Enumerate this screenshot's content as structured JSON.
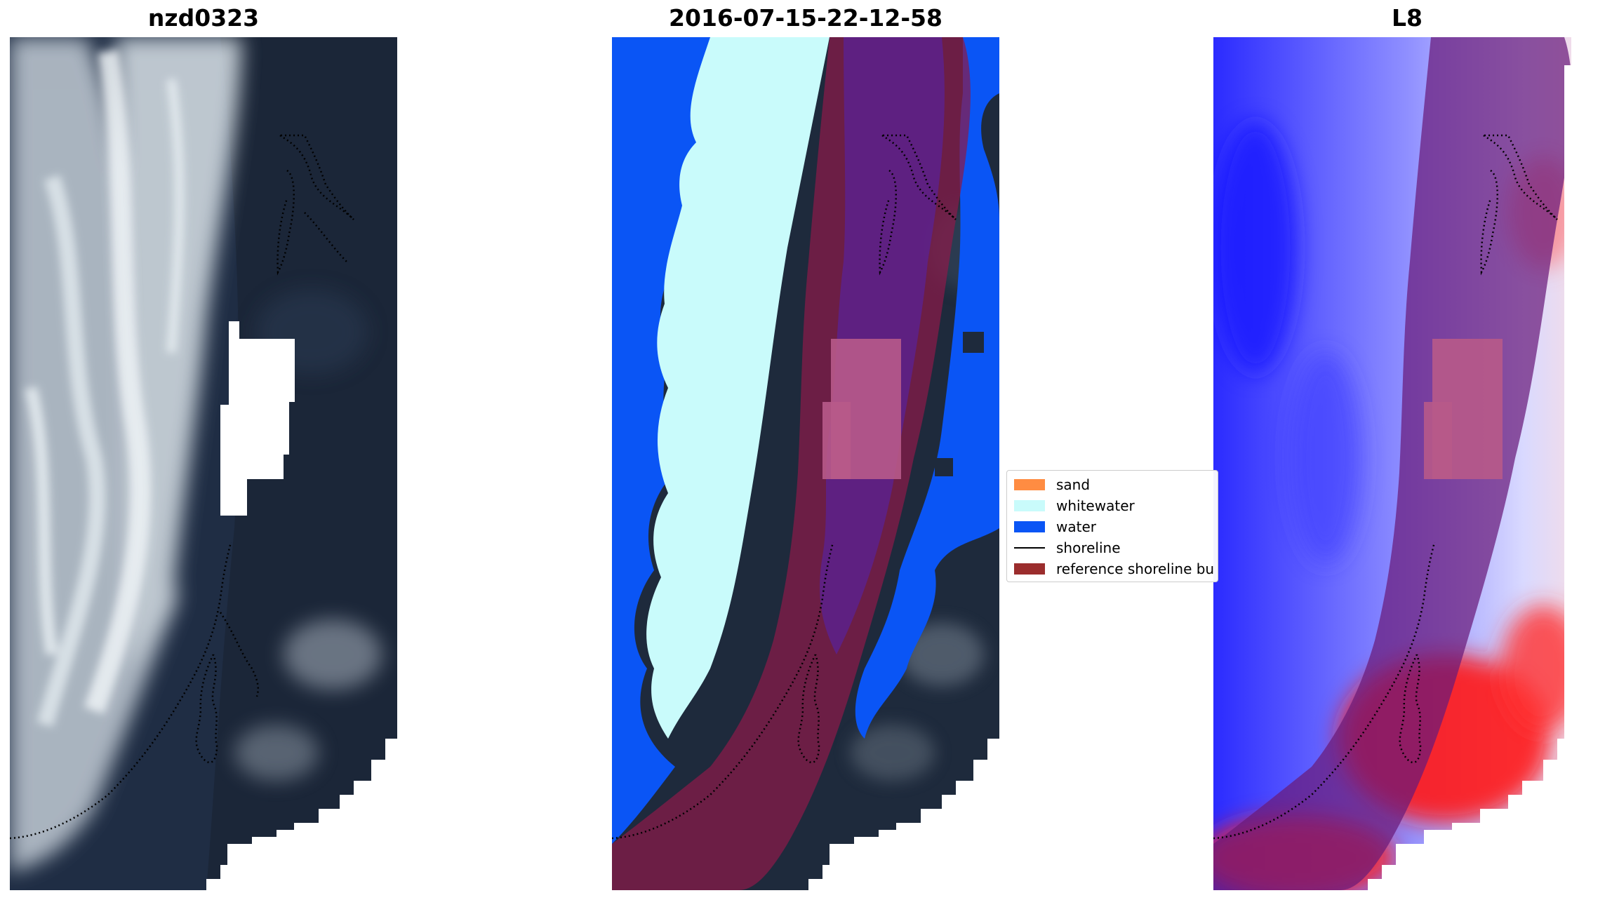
{
  "panels": {
    "left_title": "nzd0323",
    "middle_title": "2016-07-15-22-12-58",
    "right_title": "L8"
  },
  "legend": {
    "items": [
      {
        "label": "sand",
        "color": "#ff8c42",
        "kind": "patch"
      },
      {
        "label": "whitewater",
        "color": "#c9fbfb",
        "kind": "patch"
      },
      {
        "label": "water",
        "color": "#0a55f5",
        "kind": "patch"
      },
      {
        "label": "shoreline",
        "color": "#000000",
        "kind": "line"
      },
      {
        "label": "reference shoreline bu",
        "color": "#9b2d2d",
        "kind": "patch"
      }
    ]
  },
  "colors": {
    "ocean_dark": "#1f2d44",
    "surf_white": "#dfe6ec",
    "water_class": "#0a55f5",
    "whitewater_class": "#c9fbfb",
    "buffer_overlay": "#8b1a4a",
    "index_blue": "#2b2bff",
    "index_red": "#ff1a1a"
  }
}
